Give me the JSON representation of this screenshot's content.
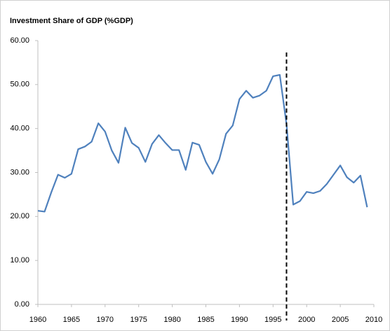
{
  "chart_data": {
    "type": "line",
    "title": "Investment Share of GDP (%GDP)",
    "x": [
      1960,
      1961,
      1962,
      1963,
      1964,
      1965,
      1966,
      1967,
      1968,
      1969,
      1970,
      1971,
      1972,
      1973,
      1974,
      1975,
      1976,
      1977,
      1978,
      1979,
      1980,
      1981,
      1982,
      1983,
      1984,
      1985,
      1986,
      1987,
      1988,
      1989,
      1990,
      1991,
      1992,
      1993,
      1994,
      1995,
      1996,
      1997,
      1998,
      1999,
      2000,
      2001,
      2002,
      2003,
      2004,
      2005,
      2006,
      2007,
      2008,
      2009
    ],
    "series": [
      {
        "color": "#4f81bd",
        "values": [
          21.3,
          21.1,
          25.5,
          29.5,
          28.8,
          29.7,
          35.3,
          35.9,
          37.0,
          41.2,
          39.3,
          35.0,
          32.2,
          40.2,
          36.7,
          35.6,
          32.4,
          36.5,
          38.5,
          36.7,
          35.1,
          35.1,
          30.6,
          36.8,
          36.3,
          32.4,
          29.7,
          33.0,
          38.8,
          40.7,
          46.7,
          48.6,
          47.0,
          47.5,
          48.6,
          51.9,
          52.2,
          41.0,
          22.7,
          23.5,
          25.6,
          25.3,
          25.8,
          27.4,
          29.5,
          31.6,
          28.9,
          27.7,
          29.3,
          22.1
        ]
      }
    ],
    "xlim": [
      1960,
      2010
    ],
    "xticks": [
      1960,
      1965,
      1970,
      1975,
      1980,
      1985,
      1990,
      1995,
      2000,
      2005,
      2010
    ],
    "ylim": [
      0,
      60
    ],
    "yticks": [
      {
        "value": 0,
        "label": "0.00"
      },
      {
        "value": 10,
        "label": "10.00"
      },
      {
        "value": 20,
        "label": "20.00"
      },
      {
        "value": 30,
        "label": "30.00"
      },
      {
        "value": 40,
        "label": "40.00"
      },
      {
        "value": 50,
        "label": "50.00"
      },
      {
        "value": 60,
        "label": "60.00"
      }
    ],
    "vline_x": 1997,
    "grid": false
  }
}
